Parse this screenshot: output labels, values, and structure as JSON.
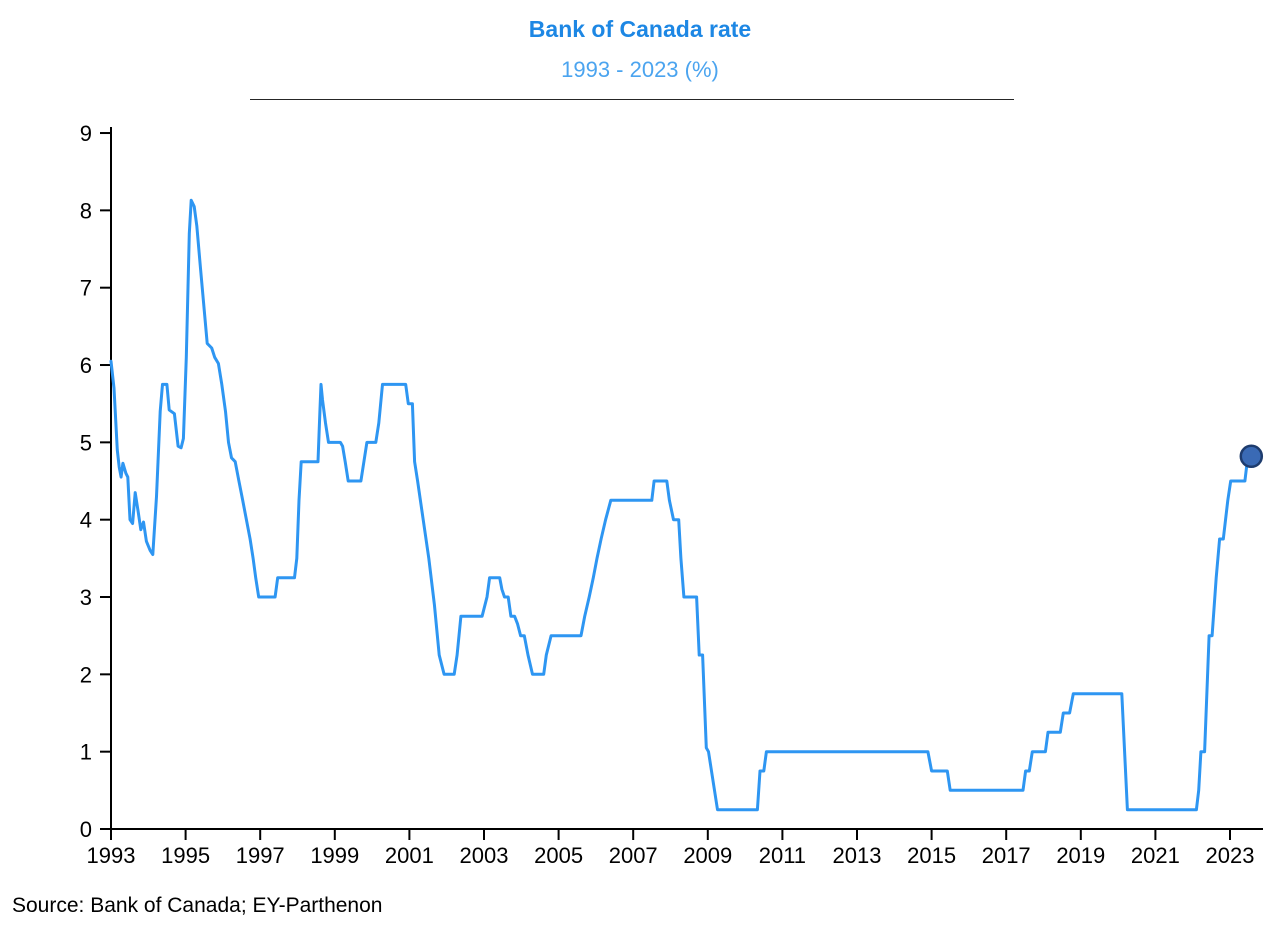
{
  "header": {
    "title": "Bank of Canada rate",
    "subtitle": "1993 - 2023 (%)"
  },
  "footer": {
    "source": "Source: Bank of Canada; EY-Parthenon"
  },
  "colors": {
    "line": "#2e96f2",
    "marker_fill": "#3a6ab5",
    "marker_stroke": "#1e3c6e",
    "title_text": "#1d87e4",
    "subtitle_text": "#4ba4ef",
    "axis": "#000000"
  },
  "chart_data": {
    "type": "line",
    "title": "Bank of Canada rate",
    "subtitle": "1993 - 2023 (%)",
    "xlabel": "",
    "ylabel": "",
    "xlim": [
      1993,
      2023.9
    ],
    "ylim": [
      0,
      9
    ],
    "grid": false,
    "legend": "none",
    "x_ticks": [
      1993,
      1995,
      1997,
      1999,
      2001,
      2003,
      2005,
      2007,
      2009,
      2011,
      2013,
      2015,
      2017,
      2019,
      2021,
      2023
    ],
    "y_ticks": [
      0,
      1,
      2,
      3,
      4,
      5,
      6,
      7,
      8,
      9
    ],
    "end_marker": {
      "x": 2023.57,
      "y": 4.82
    },
    "series": [
      {
        "name": "Bank of Canada rate (%)",
        "points": [
          [
            1993.0,
            6.05
          ],
          [
            1993.08,
            5.7
          ],
          [
            1993.17,
            4.9
          ],
          [
            1993.22,
            4.68
          ],
          [
            1993.27,
            4.55
          ],
          [
            1993.32,
            4.73
          ],
          [
            1993.4,
            4.6
          ],
          [
            1993.45,
            4.55
          ],
          [
            1993.51,
            4.0
          ],
          [
            1993.58,
            3.95
          ],
          [
            1993.65,
            4.35
          ],
          [
            1993.73,
            4.1
          ],
          [
            1993.8,
            3.87
          ],
          [
            1993.87,
            3.97
          ],
          [
            1993.95,
            3.72
          ],
          [
            1994.05,
            3.6
          ],
          [
            1994.12,
            3.55
          ],
          [
            1994.22,
            4.3
          ],
          [
            1994.32,
            5.4
          ],
          [
            1994.38,
            5.75
          ],
          [
            1994.5,
            5.75
          ],
          [
            1994.56,
            5.42
          ],
          [
            1994.7,
            5.37
          ],
          [
            1994.8,
            4.95
          ],
          [
            1994.88,
            4.93
          ],
          [
            1994.94,
            5.05
          ],
          [
            1995.02,
            6.1
          ],
          [
            1995.1,
            7.7
          ],
          [
            1995.15,
            8.13
          ],
          [
            1995.23,
            8.05
          ],
          [
            1995.3,
            7.8
          ],
          [
            1995.4,
            7.25
          ],
          [
            1995.5,
            6.7
          ],
          [
            1995.58,
            6.28
          ],
          [
            1995.7,
            6.22
          ],
          [
            1995.78,
            6.1
          ],
          [
            1995.88,
            6.02
          ],
          [
            1995.97,
            5.75
          ],
          [
            1996.07,
            5.4
          ],
          [
            1996.15,
            5.0
          ],
          [
            1996.23,
            4.8
          ],
          [
            1996.33,
            4.75
          ],
          [
            1996.43,
            4.5
          ],
          [
            1996.53,
            4.25
          ],
          [
            1996.63,
            4.0
          ],
          [
            1996.73,
            3.75
          ],
          [
            1996.81,
            3.5
          ],
          [
            1996.88,
            3.25
          ],
          [
            1996.96,
            3.0
          ],
          [
            1997.4,
            3.0
          ],
          [
            1997.47,
            3.25
          ],
          [
            1997.92,
            3.25
          ],
          [
            1997.98,
            3.5
          ],
          [
            1998.04,
            4.25
          ],
          [
            1998.1,
            4.75
          ],
          [
            1998.55,
            4.75
          ],
          [
            1998.6,
            5.4
          ],
          [
            1998.63,
            5.75
          ],
          [
            1998.67,
            5.55
          ],
          [
            1998.75,
            5.25
          ],
          [
            1998.83,
            5.0
          ],
          [
            1999.15,
            5.0
          ],
          [
            1999.21,
            4.95
          ],
          [
            1999.28,
            4.75
          ],
          [
            1999.36,
            4.5
          ],
          [
            1999.7,
            4.5
          ],
          [
            1999.78,
            4.75
          ],
          [
            1999.86,
            5.0
          ],
          [
            2000.1,
            5.0
          ],
          [
            2000.18,
            5.25
          ],
          [
            2000.28,
            5.75
          ],
          [
            2000.9,
            5.75
          ],
          [
            2000.97,
            5.5
          ],
          [
            2001.08,
            5.5
          ],
          [
            2001.14,
            4.75
          ],
          [
            2001.22,
            4.5
          ],
          [
            2001.37,
            4.0
          ],
          [
            2001.52,
            3.5
          ],
          [
            2001.67,
            2.9
          ],
          [
            2001.8,
            2.25
          ],
          [
            2001.93,
            2.0
          ],
          [
            2002.2,
            2.0
          ],
          [
            2002.28,
            2.25
          ],
          [
            2002.38,
            2.75
          ],
          [
            2002.95,
            2.75
          ],
          [
            2003.08,
            3.0
          ],
          [
            2003.15,
            3.25
          ],
          [
            2003.42,
            3.25
          ],
          [
            2003.48,
            3.1
          ],
          [
            2003.55,
            3.0
          ],
          [
            2003.65,
            3.0
          ],
          [
            2003.72,
            2.75
          ],
          [
            2003.82,
            2.75
          ],
          [
            2003.9,
            2.65
          ],
          [
            2003.98,
            2.5
          ],
          [
            2004.08,
            2.5
          ],
          [
            2004.18,
            2.25
          ],
          [
            2004.3,
            2.0
          ],
          [
            2004.6,
            2.0
          ],
          [
            2004.67,
            2.25
          ],
          [
            2004.8,
            2.5
          ],
          [
            2005.6,
            2.5
          ],
          [
            2005.7,
            2.75
          ],
          [
            2005.82,
            3.0
          ],
          [
            2005.93,
            3.25
          ],
          [
            2006.03,
            3.5
          ],
          [
            2006.14,
            3.75
          ],
          [
            2006.26,
            4.0
          ],
          [
            2006.4,
            4.25
          ],
          [
            2007.5,
            4.25
          ],
          [
            2007.56,
            4.5
          ],
          [
            2007.9,
            4.5
          ],
          [
            2007.97,
            4.25
          ],
          [
            2008.08,
            4.0
          ],
          [
            2008.22,
            4.0
          ],
          [
            2008.28,
            3.5
          ],
          [
            2008.36,
            3.0
          ],
          [
            2008.7,
            3.0
          ],
          [
            2008.77,
            2.25
          ],
          [
            2008.86,
            2.25
          ],
          [
            2008.96,
            1.05
          ],
          [
            2009.02,
            1.0
          ],
          [
            2009.26,
            0.25
          ],
          [
            2010.33,
            0.25
          ],
          [
            2010.4,
            0.75
          ],
          [
            2010.5,
            0.75
          ],
          [
            2010.57,
            1.0
          ],
          [
            2014.9,
            1.0
          ],
          [
            2015.0,
            0.75
          ],
          [
            2015.42,
            0.75
          ],
          [
            2015.5,
            0.5
          ],
          [
            2017.45,
            0.5
          ],
          [
            2017.52,
            0.75
          ],
          [
            2017.62,
            0.75
          ],
          [
            2017.7,
            1.0
          ],
          [
            2018.05,
            1.0
          ],
          [
            2018.12,
            1.25
          ],
          [
            2018.45,
            1.25
          ],
          [
            2018.53,
            1.5
          ],
          [
            2018.7,
            1.5
          ],
          [
            2018.8,
            1.75
          ],
          [
            2020.1,
            1.75
          ],
          [
            2020.25,
            0.25
          ],
          [
            2022.1,
            0.25
          ],
          [
            2022.16,
            0.5
          ],
          [
            2022.22,
            1.0
          ],
          [
            2022.32,
            1.0
          ],
          [
            2022.44,
            2.5
          ],
          [
            2022.52,
            2.5
          ],
          [
            2022.63,
            3.25
          ],
          [
            2022.72,
            3.75
          ],
          [
            2022.82,
            3.75
          ],
          [
            2022.94,
            4.25
          ],
          [
            2023.02,
            4.5
          ],
          [
            2023.4,
            4.5
          ],
          [
            2023.46,
            4.75
          ],
          [
            2023.56,
            4.75
          ]
        ]
      }
    ]
  }
}
